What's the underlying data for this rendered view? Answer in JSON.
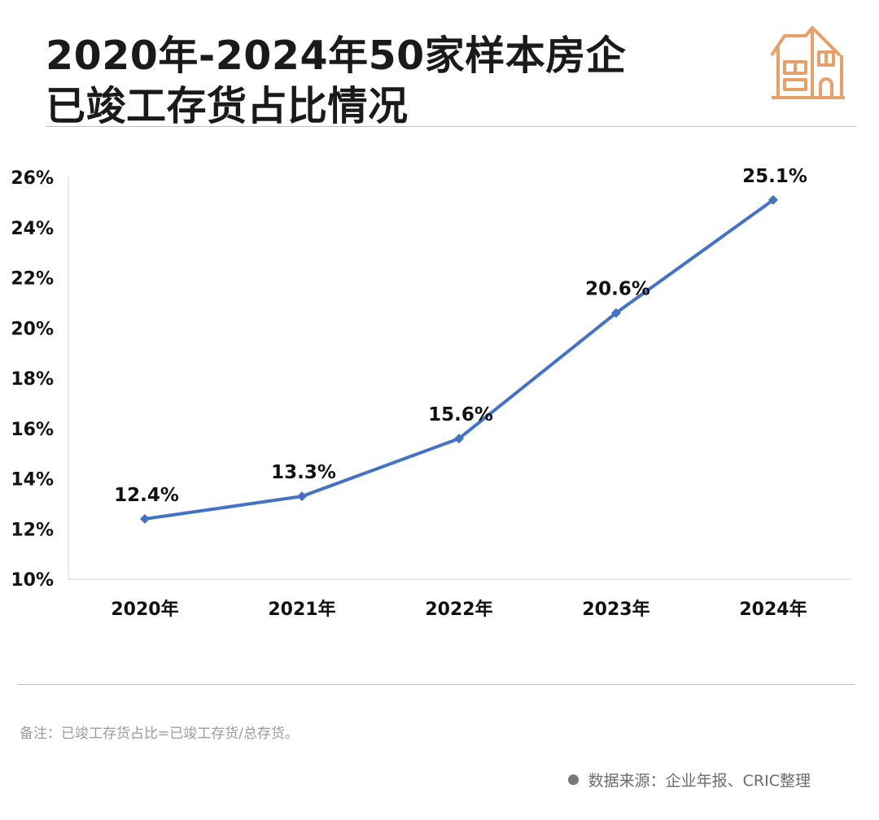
{
  "header": {
    "title_line1": "2020年-2024年50家样本房企",
    "title_line2": "已竣工存货占比情况",
    "logo_icon": "house-icon",
    "logo_color": "#E8A06A"
  },
  "chart_data": {
    "type": "line",
    "categories": [
      "2020年",
      "2021年",
      "2022年",
      "2023年",
      "2024年"
    ],
    "series": [
      {
        "values": [
          12.4,
          13.3,
          15.6,
          20.6,
          25.1
        ],
        "color": "#4472C4"
      }
    ],
    "data_labels": [
      "12.4%",
      "13.3%",
      "15.6%",
      "20.6%",
      "25.1%"
    ],
    "yticks": [
      "10%",
      "12%",
      "14%",
      "16%",
      "18%",
      "20%",
      "22%",
      "24%",
      "26%"
    ],
    "ylim": [
      10,
      26
    ],
    "grid": false
  },
  "footer": {
    "note": "备注：已竣工存货占比=已竣工存货/总存货。",
    "source": "数据来源：企业年报、CRIC整理"
  }
}
